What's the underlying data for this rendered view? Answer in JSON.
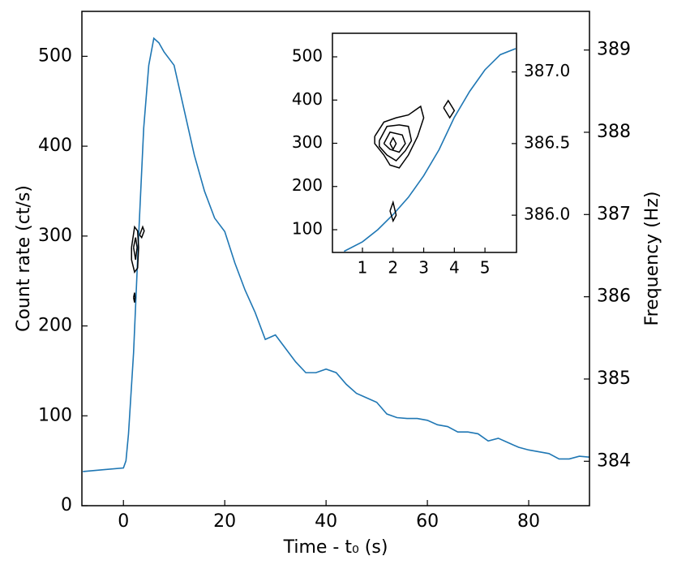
{
  "chart_data": [
    {
      "type": "line",
      "xlabel": "Time - t₀ (s)",
      "ylabel": "Count rate (ct/s)",
      "y2label": "Frequency (Hz)",
      "xlim": [
        -8.2,
        92
      ],
      "xticks": [
        0,
        20,
        40,
        60,
        80
      ],
      "ylim": [
        0,
        550
      ],
      "yticks": [
        0,
        100,
        200,
        300,
        400,
        500
      ],
      "y2lim": [
        383.46,
        389.47
      ],
      "y2ticks": [
        384,
        385,
        386,
        387,
        388,
        389
      ],
      "x": [
        -8,
        -4,
        0,
        0.5,
        1,
        2,
        3,
        4,
        5,
        6,
        7,
        8,
        10,
        12,
        14,
        16,
        18,
        20,
        22,
        24,
        26,
        28,
        30,
        32,
        34,
        36,
        38,
        40,
        42,
        44,
        46,
        48,
        50,
        52,
        54,
        56,
        58,
        60,
        62,
        64,
        66,
        68,
        70,
        72,
        74,
        76,
        78,
        80,
        82,
        84,
        86,
        88,
        90,
        92
      ],
      "series": [
        {
          "color": "#1f77b4",
          "values": [
            38,
            40,
            42,
            50,
            80,
            170,
            300,
            420,
            490,
            520,
            515,
            505,
            490,
            440,
            390,
            350,
            320,
            305,
            270,
            240,
            215,
            185,
            190,
            175,
            160,
            148,
            148,
            152,
            148,
            135,
            125,
            120,
            115,
            102,
            98,
            97,
            97,
            95,
            90,
            88,
            82,
            82,
            80,
            72,
            75,
            70,
            65,
            62,
            60,
            58,
            52,
            52,
            55,
            54
          ]
        }
      ],
      "contour_color": "#000000",
      "contours": [
        {
          "axis": "y2",
          "x": [
            1.6,
            2.2,
            2.8,
            3.0,
            2.8,
            2.2,
            1.6,
            1.6
          ],
          "y": [
            386.6,
            386.85,
            386.8,
            386.6,
            386.35,
            386.3,
            386.45,
            386.6
          ]
        },
        {
          "axis": "y2",
          "x": [
            2.0,
            2.4,
            2.7,
            2.4,
            2.0
          ],
          "y": [
            386.6,
            386.72,
            386.6,
            386.45,
            386.6
          ]
        },
        {
          "axis": "y2",
          "x": [
            3.2,
            3.8,
            4.1,
            3.6,
            3.2
          ],
          "y": [
            386.75,
            386.85,
            386.8,
            386.72,
            386.75
          ]
        },
        {
          "axis": "y2",
          "x": [
            2.0,
            2.2,
            2.3,
            2.2,
            2.0
          ],
          "y": [
            385.99,
            386.05,
            385.99,
            385.93,
            385.99
          ]
        }
      ]
    },
    {
      "type": "line",
      "xlim": [
        0.02,
        6.03
      ],
      "xticks": [
        1,
        2,
        3,
        4,
        5
      ],
      "ylim": [
        47.4,
        554.5
      ],
      "yticks": [
        100,
        200,
        300,
        400,
        500
      ],
      "y2lim": [
        385.74,
        387.27
      ],
      "y2ticks": [
        {
          "value": 386,
          "label": "386.0"
        },
        386.5,
        {
          "value": 387,
          "label": "387.0"
        }
      ],
      "x": [
        0.4,
        1,
        1.5,
        2,
        2.5,
        3,
        3.5,
        4,
        4.5,
        5,
        5.5,
        6
      ],
      "series": [
        {
          "color": "#1f77b4",
          "values": [
            50,
            72,
            100,
            135,
            175,
            225,
            285,
            360,
            420,
            470,
            505,
            519
          ]
        }
      ],
      "contour_color": "#000000",
      "contours": [
        {
          "axis": "y2",
          "x": [
            1.4,
            1.7,
            2.1,
            2.5,
            2.9,
            3.0,
            2.8,
            2.5,
            2.2,
            1.9,
            1.7,
            1.4,
            1.4
          ],
          "y": [
            386.55,
            386.65,
            386.68,
            386.7,
            386.76,
            386.68,
            386.55,
            386.42,
            386.33,
            386.35,
            386.42,
            386.5,
            386.55
          ]
        },
        {
          "axis": "y2",
          "x": [
            1.55,
            1.8,
            2.2,
            2.5,
            2.6,
            2.4,
            2.1,
            1.8,
            1.55,
            1.55
          ],
          "y": [
            386.52,
            386.62,
            386.63,
            386.62,
            386.52,
            386.45,
            386.38,
            386.42,
            386.48,
            386.52
          ]
        },
        {
          "axis": "y2",
          "x": [
            1.7,
            1.9,
            2.3,
            2.4,
            2.2,
            1.9,
            1.7
          ],
          "y": [
            386.5,
            386.58,
            386.56,
            386.5,
            386.44,
            386.46,
            386.5
          ]
        },
        {
          "axis": "y2",
          "x": [
            1.9,
            2.0,
            2.1,
            2.0,
            1.9
          ],
          "y": [
            386.5,
            386.54,
            386.5,
            386.46,
            386.5
          ]
        },
        {
          "axis": "y2",
          "x": [
            1.9,
            2.0,
            2.1,
            2.0,
            1.9
          ],
          "y": [
            386.03,
            386.09,
            386.0,
            385.96,
            386.03
          ]
        },
        {
          "axis": "y2",
          "x": [
            3.65,
            3.8,
            4.0,
            3.85,
            3.65
          ],
          "y": [
            386.75,
            386.8,
            386.73,
            386.68,
            386.75
          ]
        }
      ]
    }
  ]
}
